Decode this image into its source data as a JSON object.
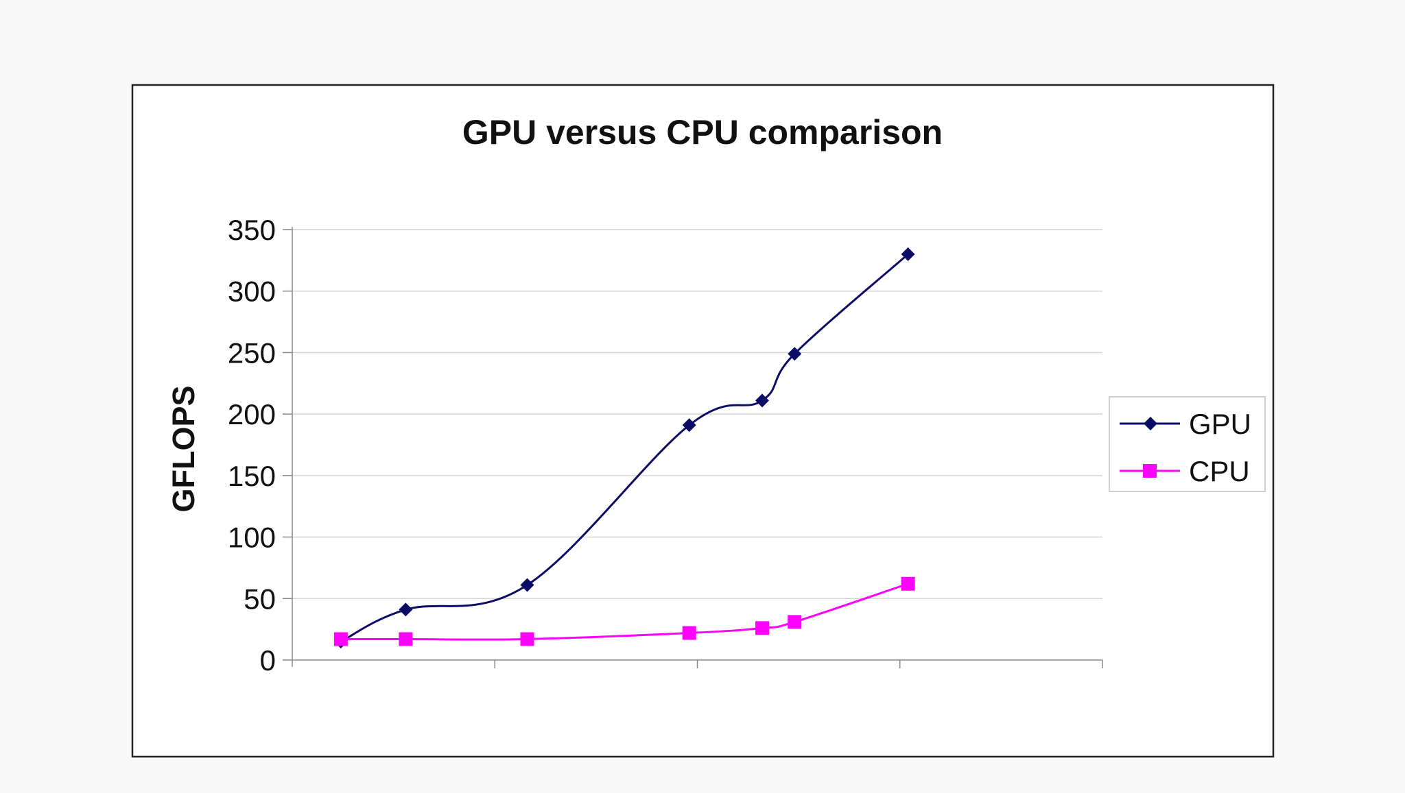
{
  "chart_data": {
    "type": "line",
    "title": "GPU versus CPU comparison",
    "xlabel": "",
    "ylabel": "GFLOPS",
    "ylim": [
      0,
      350
    ],
    "yticks": [
      0,
      50,
      100,
      150,
      200,
      250,
      300,
      350
    ],
    "grid": true,
    "legend_position": "right",
    "series": [
      {
        "name": "GPU",
        "color": "#0b0c66",
        "marker": "diamond",
        "points": [
          [
            0.06,
            15
          ],
          [
            0.14,
            41
          ],
          [
            0.29,
            61
          ],
          [
            0.49,
            191
          ],
          [
            0.58,
            211
          ],
          [
            0.62,
            249
          ],
          [
            0.76,
            330
          ]
        ]
      },
      {
        "name": "CPU",
        "color": "#ff00ff",
        "marker": "square",
        "points": [
          [
            0.06,
            17
          ],
          [
            0.14,
            17
          ],
          [
            0.29,
            17
          ],
          [
            0.49,
            22
          ],
          [
            0.58,
            26
          ],
          [
            0.62,
            31
          ],
          [
            0.76,
            62
          ]
        ]
      }
    ]
  }
}
